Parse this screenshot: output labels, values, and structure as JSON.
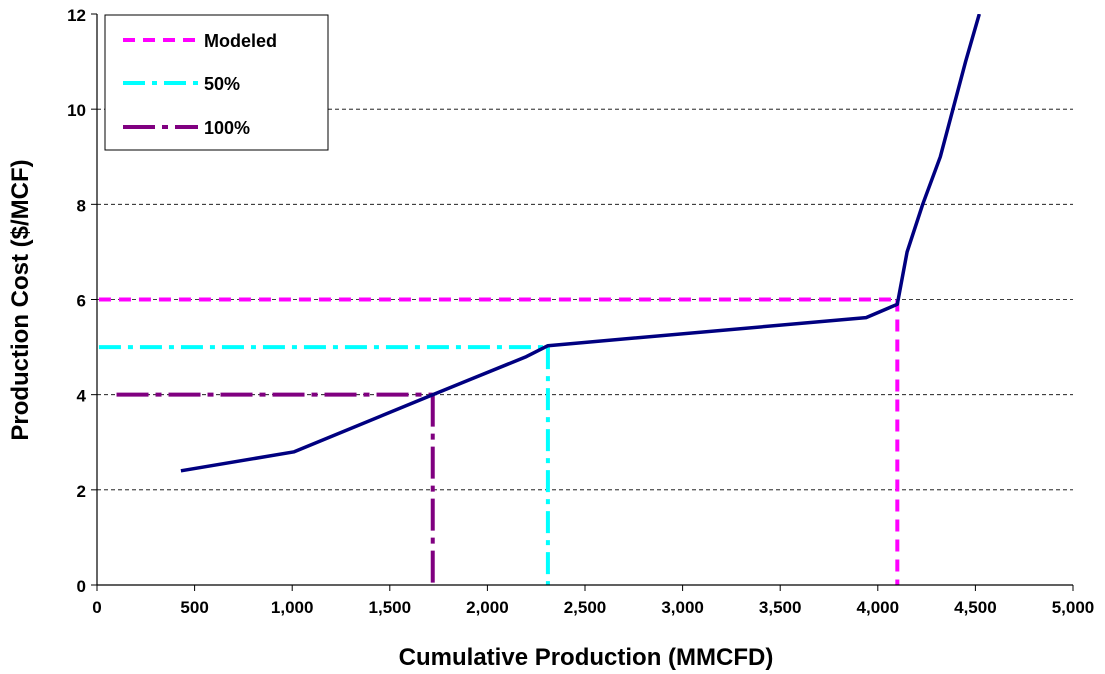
{
  "chart_data": {
    "type": "line",
    "title": "",
    "xlabel": "Cumulative Production (MMCFD)",
    "ylabel": "Production Cost ($/MCF)",
    "xlim": [
      0,
      5000
    ],
    "ylim": [
      0,
      12
    ],
    "x_ticks": [
      "0",
      "500",
      "1,000",
      "1,500",
      "2,000",
      "2,500",
      "3,000",
      "3,500",
      "4,000",
      "4,500",
      "5,000"
    ],
    "x_tick_values": [
      0,
      500,
      1000,
      1500,
      2000,
      2500,
      3000,
      3500,
      4000,
      4500,
      5000
    ],
    "y_ticks": [
      "0",
      "2",
      "4",
      "6",
      "8",
      "10",
      "12"
    ],
    "y_tick_values": [
      0,
      2,
      4,
      6,
      8,
      10,
      12
    ],
    "grid": "horizontal dashed",
    "legend_position": "top-left",
    "supply_curve": {
      "color": "#000080",
      "points": [
        [
          430,
          2.4
        ],
        [
          1010,
          2.8
        ],
        [
          1720,
          4.0
        ],
        [
          2200,
          4.8
        ],
        [
          2310,
          5.03
        ],
        [
          3940,
          5.62
        ],
        [
          4100,
          5.9
        ],
        [
          4150,
          7.0
        ],
        [
          4230,
          8.0
        ],
        [
          4320,
          9.0
        ],
        [
          4450,
          11.0
        ],
        [
          4520,
          12.0
        ]
      ]
    },
    "series": [
      {
        "name": "Modeled",
        "color": "#ff00ff",
        "dash": "dash",
        "x_start": 10,
        "x_end": 4100,
        "y": 6
      },
      {
        "name": "50%",
        "color": "#00ffff",
        "dash": "dash-dot",
        "x_start": 10,
        "x_end": 2310,
        "y": 5
      },
      {
        "name": "100%",
        "color": "#800080",
        "dash": "long-dash-dot",
        "x_start": 100,
        "x_end": 1720,
        "y": 4
      }
    ]
  }
}
